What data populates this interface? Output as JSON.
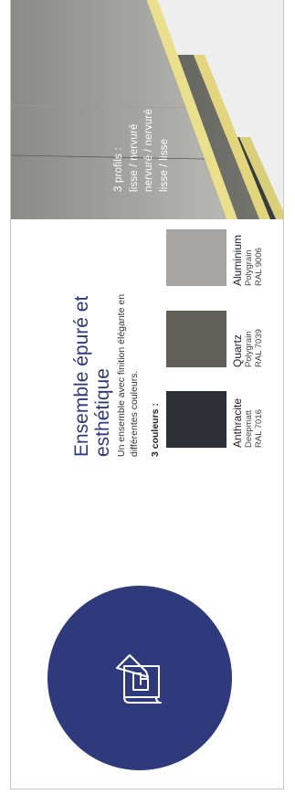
{
  "heading": "Ensemble épuré et esthétique",
  "description": "Un ensemble avec finition élégante en différentes couleurs.",
  "colors_label": "3 couleurs :",
  "swatches": [
    {
      "name": "Anthracite",
      "finish": "Deepmatt",
      "ral": "RAL 7016",
      "hex": "#2c2f35"
    },
    {
      "name": "Quartz",
      "finish": "Polygrain",
      "ral": "RAL 7039",
      "hex": "#5f5f58"
    },
    {
      "name": "Aluminium",
      "finish": "Polygrain",
      "ral": "RAL 9006",
      "hex": "#a5a4a3"
    }
  ],
  "profiles": {
    "title": "3 profils :",
    "lines": [
      "lisse / nervuré",
      "nervuré / nervuré",
      "lisse / lisse"
    ]
  },
  "accent_color": "#2f3a7d",
  "icon": "blueprint-pencil-icon"
}
